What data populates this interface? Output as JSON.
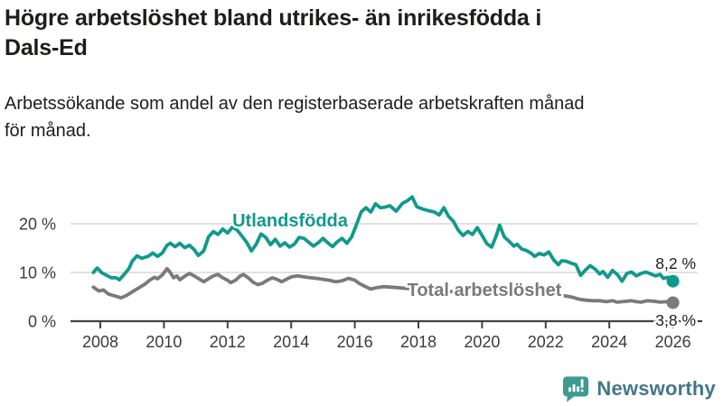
{
  "page": {
    "title_line1": "Högre arbetslöshet bland utrikes- än inrikesfödda i",
    "title_line2": "Dals-Ed",
    "subtitle_line1": "Arbetssökande som andel av den registerbaserade arbetskraften månad",
    "subtitle_line2": "för månad."
  },
  "branding": {
    "logo_text": "Newsworthy",
    "logo_icon": "speech-bubble-bar-chart-icon",
    "icon_color": "#3f9a90",
    "text_color": "#44768a"
  },
  "chart_data": {
    "type": "line",
    "title": "Högre arbetslöshet bland utrikes- än inrikesfödda i Dals-Ed",
    "subtitle": "Arbetssökande som andel av den registerbaserade arbetskraften månad för månad.",
    "xlabel": "",
    "ylabel": "",
    "grid": "horizontal",
    "legend_position": "inline-labels",
    "xlim": [
      2007.7,
      2026.9
    ],
    "ylim": [
      0,
      29
    ],
    "x_ticks": [
      2008,
      2010,
      2012,
      2014,
      2016,
      2018,
      2020,
      2022,
      2024,
      2026
    ],
    "x_tick_labels": [
      "2008",
      "2010",
      "2012",
      "2014",
      "2016",
      "2018",
      "2020",
      "2022",
      "2024",
      "2026"
    ],
    "y_ticks": [
      0,
      10,
      20
    ],
    "y_tick_labels": [
      "0 %",
      "10 %",
      "20 %"
    ],
    "colors": {
      "gridline": "#d8d8d8",
      "axis_line": "#424242",
      "axis_text": "#3b3b3b",
      "end_label_text": "#1d1d1b"
    },
    "series": [
      {
        "name": "Utlandsfödda",
        "color": "#12998c",
        "end_label": "8,2 %",
        "end_value": 8.2,
        "points": [
          [
            2007.78,
            10.0
          ],
          [
            2007.9,
            10.9
          ],
          [
            2008.05,
            9.9
          ],
          [
            2008.2,
            9.4
          ],
          [
            2008.35,
            8.9
          ],
          [
            2008.5,
            8.9
          ],
          [
            2008.6,
            8.5
          ],
          [
            2008.75,
            9.6
          ],
          [
            2008.9,
            10.8
          ],
          [
            2009.0,
            12.3
          ],
          [
            2009.15,
            13.4
          ],
          [
            2009.3,
            12.9
          ],
          [
            2009.5,
            13.3
          ],
          [
            2009.65,
            14.0
          ],
          [
            2009.8,
            13.3
          ],
          [
            2009.95,
            14.0
          ],
          [
            2010.1,
            15.6
          ],
          [
            2010.2,
            16.0
          ],
          [
            2010.35,
            15.3
          ],
          [
            2010.5,
            16.0
          ],
          [
            2010.65,
            15.1
          ],
          [
            2010.8,
            15.6
          ],
          [
            2010.95,
            14.7
          ],
          [
            2011.08,
            13.5
          ],
          [
            2011.25,
            14.4
          ],
          [
            2011.4,
            17.3
          ],
          [
            2011.55,
            18.4
          ],
          [
            2011.7,
            17.8
          ],
          [
            2011.85,
            18.9
          ],
          [
            2012.0,
            18.1
          ],
          [
            2012.15,
            19.3
          ],
          [
            2012.3,
            18.7
          ],
          [
            2012.45,
            17.5
          ],
          [
            2012.6,
            16.2
          ],
          [
            2012.75,
            14.4
          ],
          [
            2012.9,
            15.8
          ],
          [
            2013.05,
            17.9
          ],
          [
            2013.2,
            17.2
          ],
          [
            2013.35,
            15.7
          ],
          [
            2013.5,
            16.8
          ],
          [
            2013.65,
            15.4
          ],
          [
            2013.8,
            16.1
          ],
          [
            2013.95,
            15.2
          ],
          [
            2014.1,
            15.8
          ],
          [
            2014.25,
            17.2
          ],
          [
            2014.4,
            17.0
          ],
          [
            2014.55,
            16.2
          ],
          [
            2014.7,
            15.4
          ],
          [
            2014.85,
            16.1
          ],
          [
            2015.0,
            17.0
          ],
          [
            2015.15,
            16.1
          ],
          [
            2015.3,
            15.3
          ],
          [
            2015.45,
            16.3
          ],
          [
            2015.6,
            17.0
          ],
          [
            2015.75,
            16.0
          ],
          [
            2015.9,
            17.3
          ],
          [
            2016.05,
            19.8
          ],
          [
            2016.2,
            22.4
          ],
          [
            2016.35,
            23.3
          ],
          [
            2016.5,
            22.4
          ],
          [
            2016.65,
            24.1
          ],
          [
            2016.8,
            23.3
          ],
          [
            2016.95,
            23.4
          ],
          [
            2017.1,
            23.7
          ],
          [
            2017.3,
            22.6
          ],
          [
            2017.5,
            24.2
          ],
          [
            2017.65,
            24.7
          ],
          [
            2017.8,
            25.5
          ],
          [
            2017.95,
            23.5
          ],
          [
            2018.1,
            23.1
          ],
          [
            2018.3,
            22.7
          ],
          [
            2018.5,
            22.4
          ],
          [
            2018.65,
            21.8
          ],
          [
            2018.8,
            23.3
          ],
          [
            2018.95,
            21.5
          ],
          [
            2019.1,
            20.5
          ],
          [
            2019.25,
            18.7
          ],
          [
            2019.4,
            17.6
          ],
          [
            2019.55,
            18.4
          ],
          [
            2019.7,
            17.8
          ],
          [
            2019.85,
            19.2
          ],
          [
            2020.0,
            17.6
          ],
          [
            2020.15,
            15.9
          ],
          [
            2020.3,
            15.2
          ],
          [
            2020.45,
            17.6
          ],
          [
            2020.55,
            19.7
          ],
          [
            2020.7,
            17.3
          ],
          [
            2020.85,
            16.4
          ],
          [
            2021.0,
            15.4
          ],
          [
            2021.1,
            15.8
          ],
          [
            2021.25,
            14.8
          ],
          [
            2021.4,
            14.5
          ],
          [
            2021.55,
            13.9
          ],
          [
            2021.65,
            13.3
          ],
          [
            2021.8,
            13.9
          ],
          [
            2021.95,
            13.6
          ],
          [
            2022.1,
            14.2
          ],
          [
            2022.25,
            12.6
          ],
          [
            2022.4,
            11.6
          ],
          [
            2022.5,
            12.4
          ],
          [
            2022.65,
            12.3
          ],
          [
            2022.8,
            11.9
          ],
          [
            2022.95,
            11.6
          ],
          [
            2023.1,
            9.4
          ],
          [
            2023.25,
            10.5
          ],
          [
            2023.4,
            11.4
          ],
          [
            2023.55,
            10.7
          ],
          [
            2023.7,
            9.7
          ],
          [
            2023.8,
            10.2
          ],
          [
            2023.95,
            9.0
          ],
          [
            2024.1,
            10.4
          ],
          [
            2024.25,
            9.6
          ],
          [
            2024.4,
            8.2
          ],
          [
            2024.55,
            9.8
          ],
          [
            2024.7,
            10.1
          ],
          [
            2024.85,
            9.3
          ],
          [
            2025.0,
            9.8
          ],
          [
            2025.15,
            10.1
          ],
          [
            2025.3,
            9.7
          ],
          [
            2025.45,
            9.3
          ],
          [
            2025.6,
            9.6
          ],
          [
            2025.7,
            8.8
          ],
          [
            2025.85,
            9.0
          ],
          [
            2026.0,
            8.2
          ]
        ]
      },
      {
        "name": "Total arbetslöshet",
        "color": "#797a7e",
        "end_label": "3,8 %",
        "end_value": 3.8,
        "points": [
          [
            2007.78,
            7.0
          ],
          [
            2007.95,
            6.2
          ],
          [
            2008.1,
            6.4
          ],
          [
            2008.25,
            5.6
          ],
          [
            2008.4,
            5.3
          ],
          [
            2008.55,
            5.0
          ],
          [
            2008.65,
            4.8
          ],
          [
            2008.8,
            5.2
          ],
          [
            2008.95,
            5.8
          ],
          [
            2009.1,
            6.4
          ],
          [
            2009.25,
            7.0
          ],
          [
            2009.4,
            7.6
          ],
          [
            2009.55,
            8.4
          ],
          [
            2009.7,
            9.0
          ],
          [
            2009.8,
            8.7
          ],
          [
            2009.95,
            9.5
          ],
          [
            2010.1,
            10.8
          ],
          [
            2010.2,
            10.0
          ],
          [
            2010.3,
            8.9
          ],
          [
            2010.4,
            9.3
          ],
          [
            2010.5,
            8.5
          ],
          [
            2010.65,
            9.2
          ],
          [
            2010.8,
            9.8
          ],
          [
            2010.95,
            9.3
          ],
          [
            2011.1,
            8.7
          ],
          [
            2011.25,
            8.1
          ],
          [
            2011.4,
            8.7
          ],
          [
            2011.55,
            9.3
          ],
          [
            2011.7,
            9.6
          ],
          [
            2011.85,
            8.9
          ],
          [
            2012.0,
            8.4
          ],
          [
            2012.1,
            7.9
          ],
          [
            2012.25,
            8.4
          ],
          [
            2012.4,
            9.3
          ],
          [
            2012.5,
            9.6
          ],
          [
            2012.65,
            8.9
          ],
          [
            2012.8,
            8.0
          ],
          [
            2012.95,
            7.5
          ],
          [
            2013.1,
            7.8
          ],
          [
            2013.25,
            8.4
          ],
          [
            2013.4,
            8.9
          ],
          [
            2013.55,
            8.6
          ],
          [
            2013.7,
            8.1
          ],
          [
            2013.85,
            8.6
          ],
          [
            2014.0,
            9.1
          ],
          [
            2014.2,
            9.3
          ],
          [
            2014.4,
            9.1
          ],
          [
            2014.6,
            8.9
          ],
          [
            2014.8,
            8.8
          ],
          [
            2015.0,
            8.6
          ],
          [
            2015.2,
            8.4
          ],
          [
            2015.4,
            8.1
          ],
          [
            2015.6,
            8.3
          ],
          [
            2015.8,
            8.8
          ],
          [
            2016.0,
            8.4
          ],
          [
            2016.15,
            7.7
          ],
          [
            2016.3,
            7.2
          ],
          [
            2016.5,
            6.6
          ],
          [
            2016.7,
            6.9
          ],
          [
            2016.9,
            7.1
          ],
          [
            2017.1,
            7.0
          ],
          [
            2017.3,
            6.9
          ],
          [
            2017.5,
            6.8
          ],
          [
            2017.7,
            6.7
          ],
          [
            2017.9,
            6.6
          ],
          [
            2018.1,
            6.5
          ],
          [
            2018.3,
            6.4
          ],
          [
            2018.5,
            6.3
          ],
          [
            2018.7,
            6.2
          ],
          [
            2018.9,
            6.1
          ],
          [
            2019.1,
            6.1
          ],
          [
            2019.3,
            6.0
          ],
          [
            2019.5,
            6.0
          ],
          [
            2019.7,
            6.1
          ],
          [
            2019.9,
            6.2
          ],
          [
            2020.1,
            6.6
          ],
          [
            2020.3,
            7.0
          ],
          [
            2020.5,
            7.2
          ],
          [
            2020.7,
            7.1
          ],
          [
            2020.9,
            6.9
          ],
          [
            2021.1,
            6.7
          ],
          [
            2021.3,
            6.4
          ],
          [
            2021.5,
            6.2
          ],
          [
            2021.7,
            6.0
          ],
          [
            2021.9,
            5.8
          ],
          [
            2022.1,
            5.6
          ],
          [
            2022.3,
            5.4
          ],
          [
            2022.5,
            5.3
          ],
          [
            2022.7,
            5.1
          ],
          [
            2022.85,
            4.9
          ],
          [
            2023.0,
            4.6
          ],
          [
            2023.15,
            4.4
          ],
          [
            2023.3,
            4.3
          ],
          [
            2023.5,
            4.2
          ],
          [
            2023.7,
            4.2
          ],
          [
            2023.9,
            4.0
          ],
          [
            2024.1,
            4.2
          ],
          [
            2024.25,
            3.9
          ],
          [
            2024.4,
            4.0
          ],
          [
            2024.55,
            4.1
          ],
          [
            2024.7,
            4.2
          ],
          [
            2024.85,
            4.0
          ],
          [
            2025.0,
            3.9
          ],
          [
            2025.2,
            4.2
          ],
          [
            2025.4,
            4.1
          ],
          [
            2025.6,
            3.9
          ],
          [
            2025.8,
            4.0
          ],
          [
            2026.0,
            3.8
          ]
        ]
      }
    ]
  }
}
